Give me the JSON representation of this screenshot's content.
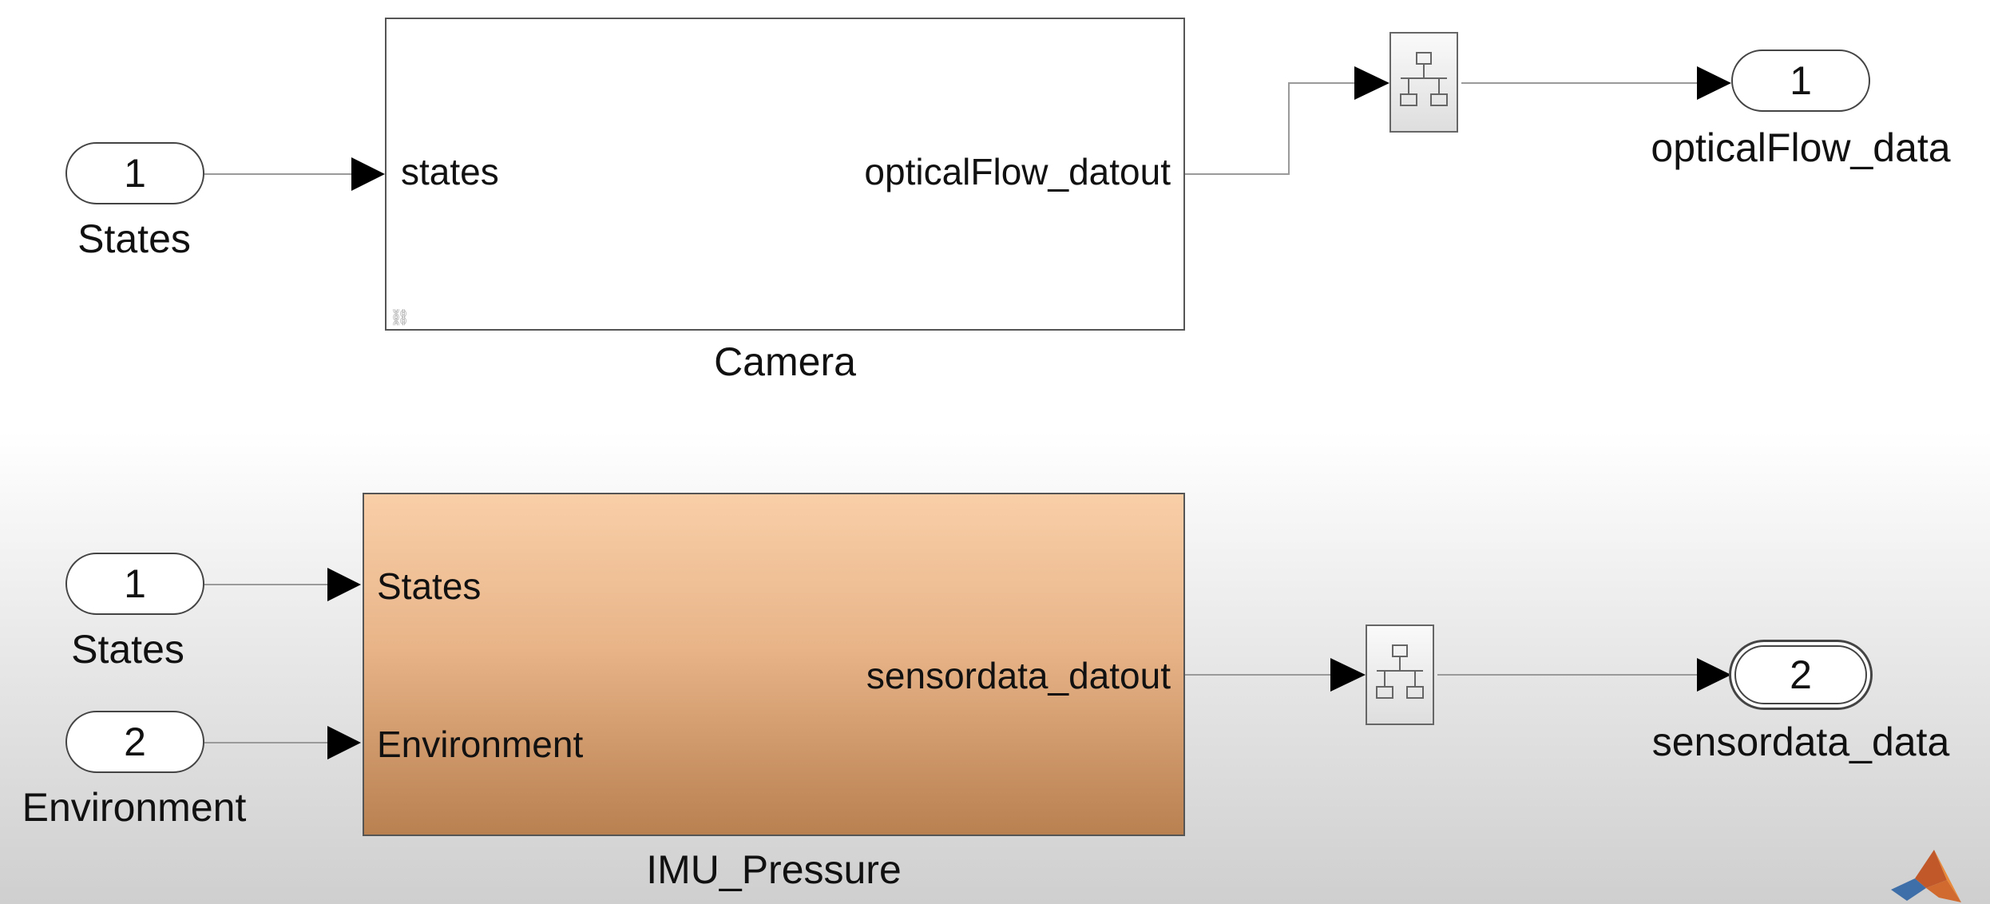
{
  "inports": [
    {
      "number": "1",
      "label": "States"
    },
    {
      "number": "1",
      "label": "States"
    },
    {
      "number": "2",
      "label": "Environment"
    }
  ],
  "outports": [
    {
      "number": "1",
      "label": "opticalFlow_data"
    },
    {
      "number": "2",
      "label": "sensordata_data"
    }
  ],
  "blocks": {
    "camera": {
      "name": "Camera",
      "input_port": "states",
      "output_port": "opticalFlow_datout"
    },
    "imu": {
      "name": "IMU_Pressure",
      "input_ports": [
        "States",
        "Environment"
      ],
      "output_port": "sensordata_datout"
    }
  },
  "colors": {
    "imu_top": "#f9cfa8",
    "imu_bottom": "#b98050",
    "line": "#999999"
  },
  "icons": {
    "tag_block": "bus-selector-icon",
    "link_badge": "library-link-icon",
    "logo": "matlab-logo-icon"
  }
}
